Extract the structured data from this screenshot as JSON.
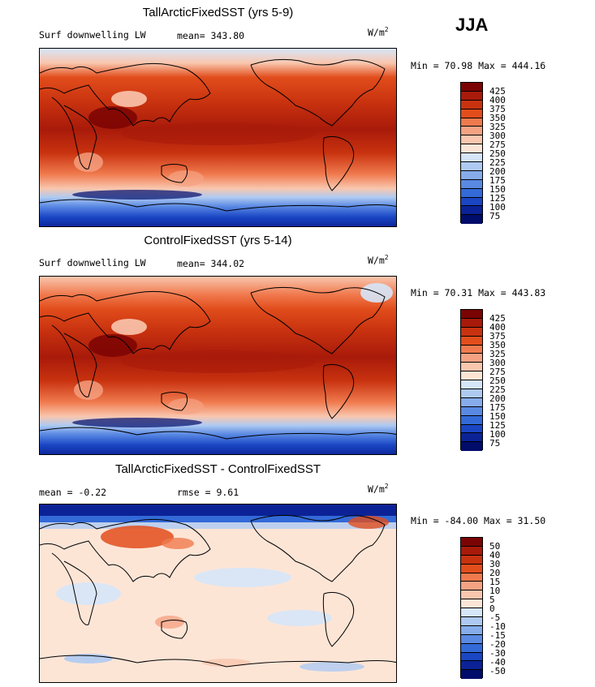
{
  "season": "JJA",
  "panels": [
    {
      "title": "TallArcticFixedSST (yrs 5-9)",
      "left_label": "Surf downwelling LW",
      "mean_label": "mean= 343.80",
      "units_base": "W/m",
      "units_exp": "2",
      "minmax": "Min =  70.98 Max = 444.16",
      "colorbar_levels": [
        "425",
        "400",
        "375",
        "350",
        "325",
        "300",
        "275",
        "250",
        "225",
        "200",
        "175",
        "150",
        "125",
        "100",
        "75"
      ],
      "colorbar_colors": [
        "#7a0403",
        "#a81a0a",
        "#c8320f",
        "#e24d1c",
        "#f07a4e",
        "#f5a283",
        "#f9c6ae",
        "#fde5d6",
        "#d6e5f8",
        "#aecaf2",
        "#86aceb",
        "#5a89e3",
        "#336ad8",
        "#1a46c4",
        "#0b2296",
        "#000c6a"
      ],
      "chart_data": {
        "type": "heatmap",
        "field": "Surf downwelling LW",
        "units": "W/m2",
        "min": 70.98,
        "max": 444.16,
        "mean": 343.8
      }
    },
    {
      "title": "ControlFixedSST (yrs 5-14)",
      "left_label": "Surf downwelling LW",
      "mean_label": "mean= 344.02",
      "units_base": "W/m",
      "units_exp": "2",
      "minmax": "Min =  70.31 Max = 443.83",
      "colorbar_levels": [
        "425",
        "400",
        "375",
        "350",
        "325",
        "300",
        "275",
        "250",
        "225",
        "200",
        "175",
        "150",
        "125",
        "100",
        "75"
      ],
      "colorbar_colors": [
        "#7a0403",
        "#a81a0a",
        "#c8320f",
        "#e24d1c",
        "#f07a4e",
        "#f5a283",
        "#f9c6ae",
        "#fde5d6",
        "#d6e5f8",
        "#aecaf2",
        "#86aceb",
        "#5a89e3",
        "#336ad8",
        "#1a46c4",
        "#0b2296",
        "#000c6a"
      ],
      "chart_data": {
        "type": "heatmap",
        "field": "Surf downwelling LW",
        "units": "W/m2",
        "min": 70.31,
        "max": 443.83,
        "mean": 344.02
      }
    },
    {
      "title": "TallArcticFixedSST - ControlFixedSST",
      "left_label": "mean =  -0.22",
      "mean_label": "rmse =   9.61",
      "units_base": "W/m",
      "units_exp": "2",
      "minmax": "Min = -84.00 Max =  31.50",
      "colorbar_levels": [
        "50",
        "40",
        "30",
        "20",
        "15",
        "10",
        "5",
        "0",
        "-5",
        "-10",
        "-15",
        "-20",
        "-30",
        "-40",
        "-50"
      ],
      "colorbar_colors": [
        "#7a0403",
        "#a81a0a",
        "#c8320f",
        "#e24d1c",
        "#f07a4e",
        "#f5a283",
        "#f9c6ae",
        "#fde5d6",
        "#d6e5f8",
        "#aecaf2",
        "#86aceb",
        "#5a89e3",
        "#336ad8",
        "#1a46c4",
        "#0b2296",
        "#000c6a"
      ],
      "chart_data": {
        "type": "heatmap",
        "field": "difference",
        "units": "W/m2",
        "min": -84.0,
        "max": 31.5,
        "mean": -0.22,
        "rmse": 9.61
      }
    }
  ],
  "chart_data": [
    {
      "type": "heatmap",
      "title": "TallArcticFixedSST (yrs 5-9)",
      "variable": "Surf downwelling LW",
      "units": "W/m2",
      "mean": 343.8,
      "min": 70.98,
      "max": 444.16,
      "levels": [
        75,
        100,
        125,
        150,
        175,
        200,
        225,
        250,
        275,
        300,
        325,
        350,
        375,
        400,
        425
      ]
    },
    {
      "type": "heatmap",
      "title": "ControlFixedSST (yrs 5-14)",
      "variable": "Surf downwelling LW",
      "units": "W/m2",
      "mean": 344.02,
      "min": 70.31,
      "max": 443.83,
      "levels": [
        75,
        100,
        125,
        150,
        175,
        200,
        225,
        250,
        275,
        300,
        325,
        350,
        375,
        400,
        425
      ]
    },
    {
      "type": "heatmap",
      "title": "TallArcticFixedSST - ControlFixedSST",
      "units": "W/m2",
      "mean": -0.22,
      "rmse": 9.61,
      "min": -84.0,
      "max": 31.5,
      "levels": [
        -50,
        -40,
        -30,
        -20,
        -15,
        -10,
        -5,
        0,
        5,
        10,
        15,
        20,
        30,
        40,
        50
      ]
    }
  ]
}
